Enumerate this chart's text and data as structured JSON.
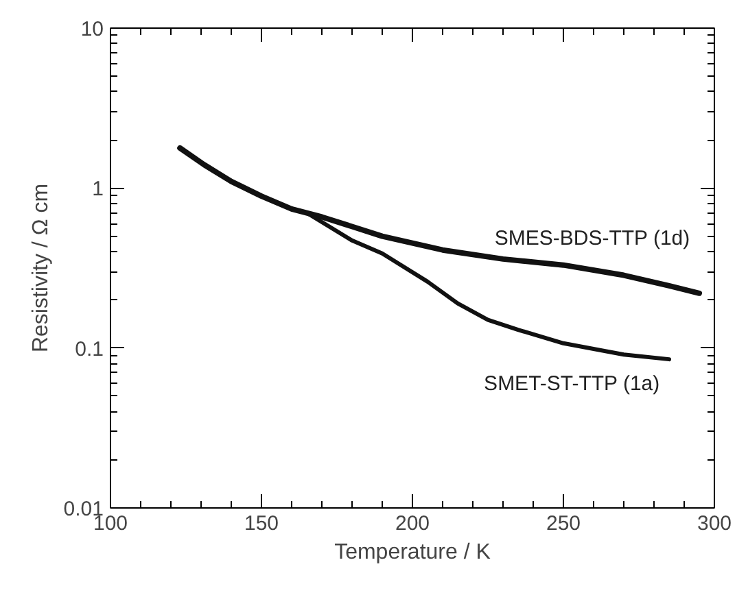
{
  "chart_data": {
    "type": "line",
    "xlabel": "Temperature / K",
    "ylabel": "Resistivity / Ω cm",
    "log": "y",
    "xlim": [
      100,
      300
    ],
    "ylim": [
      0.01,
      10
    ],
    "xticks": [
      100,
      150,
      200,
      250,
      300
    ],
    "yticks": [
      0.01,
      0.1,
      1,
      10
    ],
    "series": [
      {
        "name": "SMES-BDS-TTP (1d)",
        "color": "#111111",
        "x": [
          123,
          131,
          140,
          150,
          160,
          170,
          190,
          210,
          230,
          250,
          270,
          285,
          295
        ],
        "values": [
          1.78,
          1.4,
          1.1,
          0.89,
          0.74,
          0.66,
          0.5,
          0.41,
          0.36,
          0.33,
          0.285,
          0.245,
          0.22
        ]
      },
      {
        "name": "SMET-ST-TTP (1a)",
        "color": "#111111",
        "x": [
          165,
          180,
          190,
          205,
          215,
          225,
          235,
          250,
          270,
          285
        ],
        "values": [
          0.7,
          0.47,
          0.39,
          0.26,
          0.19,
          0.15,
          0.13,
          0.107,
          0.091,
          0.085
        ]
      }
    ]
  }
}
